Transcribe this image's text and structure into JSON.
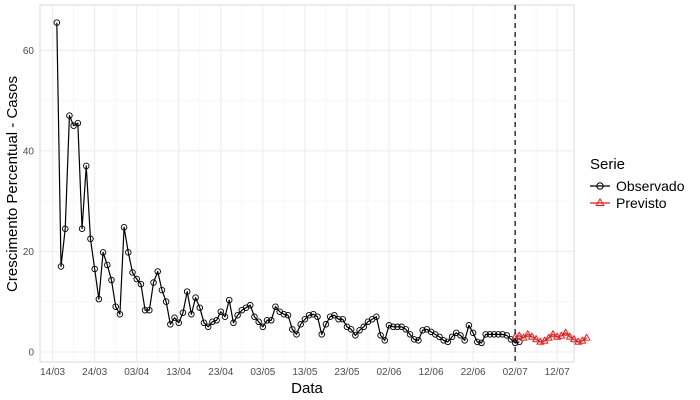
{
  "chart_data": {
    "type": "line",
    "xlabel": "Data",
    "ylabel": "Crescimento Percentual - Casos",
    "x_tick_labels": [
      "14/03",
      "24/03",
      "03/04",
      "13/04",
      "23/04",
      "03/05",
      "13/05",
      "23/05",
      "02/06",
      "12/06",
      "22/06",
      "02/07",
      "12/07"
    ],
    "y_ticks": [
      0,
      20,
      40,
      60
    ],
    "ylim": [
      -2,
      69
    ],
    "xlim": [
      "2020-03-11",
      "2020-07-16"
    ],
    "grid": true,
    "vline": {
      "x": "2020-07-02",
      "style": "dashed"
    },
    "legend": {
      "title": "Serie",
      "position": "right"
    },
    "series": [
      {
        "name": "Observado",
        "color": "#000000",
        "marker": "circle",
        "start": "2020-03-15",
        "step_days": 1,
        "values": [
          65.5,
          17.0,
          24.5,
          47.0,
          45.0,
          45.5,
          24.5,
          37.0,
          22.5,
          16.5,
          10.5,
          19.8,
          17.3,
          14.3,
          9.0,
          7.5,
          24.8,
          19.8,
          15.8,
          14.5,
          13.5,
          8.3,
          8.3,
          13.8,
          16.0,
          12.3,
          10.0,
          5.5,
          6.8,
          5.8,
          7.8,
          12.0,
          7.5,
          10.8,
          8.8,
          5.8,
          5.0,
          6.0,
          6.3,
          8.0,
          7.0,
          10.3,
          5.8,
          7.3,
          8.3,
          8.8,
          9.3,
          7.0,
          6.0,
          5.0,
          6.3,
          6.3,
          9.0,
          8.0,
          7.5,
          7.3,
          4.5,
          3.5,
          5.5,
          6.5,
          7.3,
          7.5,
          7.0,
          3.5,
          5.5,
          7.0,
          7.3,
          6.5,
          6.5,
          5.0,
          4.5,
          3.3,
          4.3,
          5.0,
          6.0,
          6.5,
          7.0,
          3.3,
          2.3,
          5.3,
          5.0,
          5.0,
          5.0,
          4.5,
          3.5,
          2.5,
          2.3,
          4.3,
          4.5,
          4.0,
          3.5,
          3.0,
          2.3,
          2.0,
          3.0,
          3.8,
          3.3,
          2.3,
          5.3,
          3.8,
          2.0,
          1.8,
          3.5,
          3.5,
          3.5,
          3.5,
          3.5,
          3.3,
          2.5,
          1.8,
          2.0
        ]
      },
      {
        "name": "Previsto",
        "color": "#e41a1c",
        "marker": "triangle",
        "start": "2020-07-02",
        "step_days": 1,
        "values": [
          3.0,
          3.2,
          2.8,
          3.5,
          3.0,
          2.5,
          2.0,
          2.2,
          2.8,
          3.5,
          3.0,
          3.2,
          3.8,
          3.0,
          2.5,
          2.0,
          2.2,
          2.8
        ]
      }
    ]
  }
}
